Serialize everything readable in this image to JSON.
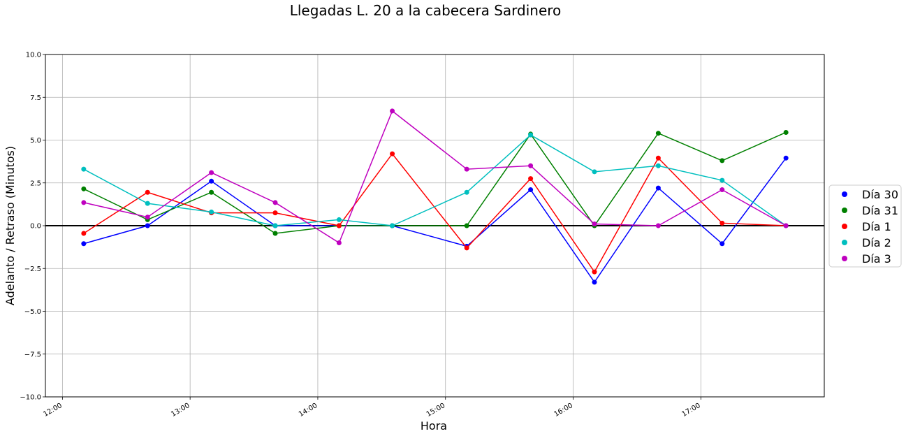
{
  "chart_data": {
    "type": "line",
    "title": "Llegadas L. 20 a la cabecera Sardinero",
    "xlabel": "Hora",
    "ylabel": "Adelanto / Retraso (Minutos)",
    "x_tick_labels": [
      "12:00",
      "13:00",
      "14:00",
      "15:00",
      "16:00",
      "17:00"
    ],
    "y_tick_labels": [
      "10.0",
      "7.5",
      "5.0",
      "2.5",
      "0.0",
      "−2.5",
      "−5.0",
      "−7.5",
      "−10.0"
    ],
    "ylim": [
      -10,
      10
    ],
    "grid": true,
    "legend_position": "right",
    "reference_line": 0,
    "x": [
      "12:10",
      "12:40",
      "13:10",
      "13:40",
      "14:10",
      "14:35",
      "15:10",
      "15:40",
      "16:10",
      "16:40",
      "17:10",
      "17:40"
    ],
    "series": [
      {
        "name": "Día 30",
        "color": "#0000ff",
        "values": [
          -1.05,
          0.0,
          2.6,
          0.0,
          0.0,
          0.0,
          -1.2,
          2.1,
          -3.3,
          2.2,
          -1.05,
          3.95
        ]
      },
      {
        "name": "Día 31",
        "color": "#008000",
        "values": [
          2.15,
          0.35,
          1.95,
          -0.45,
          0.0,
          0.0,
          0.0,
          5.35,
          0.0,
          5.4,
          3.8,
          5.45
        ]
      },
      {
        "name": "Día 1",
        "color": "#ff0000",
        "values": [
          -0.45,
          1.95,
          0.75,
          0.75,
          0.0,
          4.2,
          -1.3,
          2.75,
          -2.7,
          3.95,
          0.15,
          0.0
        ]
      },
      {
        "name": "Día 2",
        "color": "#00bfbf",
        "values": [
          3.3,
          1.3,
          0.8,
          0.0,
          0.35,
          0.0,
          1.95,
          5.3,
          3.15,
          3.5,
          2.65,
          0.0
        ]
      },
      {
        "name": "Día 3",
        "color": "#bf00bf",
        "values": [
          1.35,
          0.5,
          3.1,
          1.35,
          -1.0,
          6.7,
          3.3,
          3.5,
          0.1,
          0.0,
          2.1,
          0.0
        ]
      }
    ]
  }
}
